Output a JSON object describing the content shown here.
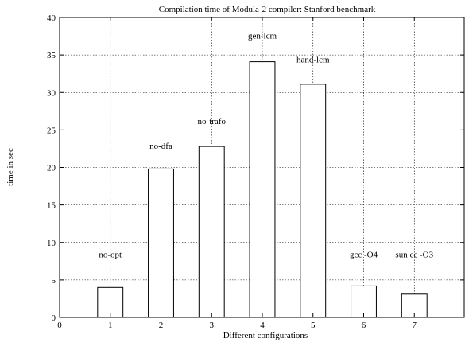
{
  "chart_data": {
    "type": "bar",
    "title": "Compilation time of Modula-2 compiler: Stanford benchmark",
    "xlabel": "Different configurations",
    "ylabel": "time in sec",
    "xlim": [
      0,
      8
    ],
    "ylim": [
      0,
      40
    ],
    "xticks": [
      0,
      1,
      2,
      3,
      4,
      5,
      6,
      7
    ],
    "yticks": [
      0,
      5,
      10,
      15,
      20,
      25,
      30,
      35,
      40
    ],
    "grid": true,
    "bar_width": 0.5,
    "bars": [
      {
        "x": 1,
        "value": 4.0,
        "label": "no-opt",
        "label_y": 8.0
      },
      {
        "x": 2,
        "value": 19.8,
        "label": "no-dfa",
        "label_y": 22.5
      },
      {
        "x": 3,
        "value": 22.8,
        "label": "no-trafo",
        "label_y": 25.8
      },
      {
        "x": 4,
        "value": 34.1,
        "label": "gen-lcm",
        "label_y": 37.2
      },
      {
        "x": 5,
        "value": 31.1,
        "label": "hand-lcm",
        "label_y": 34.0
      },
      {
        "x": 6,
        "value": 4.2,
        "label": "gcc -O4",
        "label_y": 8.0
      },
      {
        "x": 7,
        "value": 3.1,
        "label": "sun cc -O3",
        "label_y": 8.0
      }
    ]
  }
}
